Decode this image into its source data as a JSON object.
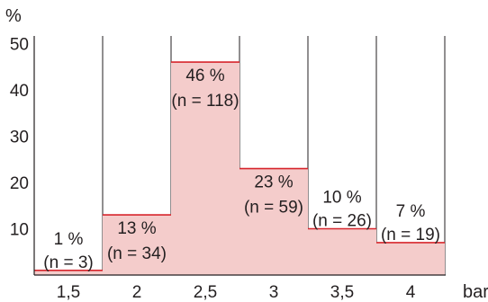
{
  "chart_data": {
    "type": "bar",
    "ylabel": "%",
    "xlabel": "bar",
    "yticks": [
      10,
      20,
      30,
      40,
      50
    ],
    "ylim": [
      0,
      53
    ],
    "categories": [
      "1,5",
      "2",
      "2,5",
      "3",
      "3,5",
      "4"
    ],
    "values": [
      1,
      13,
      46,
      23,
      10,
      7
    ],
    "value_labels": [
      "1 %",
      "13 %",
      "46 %",
      "23 %",
      "10 %",
      "7 %"
    ],
    "count_labels": [
      "(n = 3)",
      "(n = 34)",
      "(n = 118)",
      "(n = 59)",
      "(n = 26)",
      "(n = 19)"
    ],
    "grid": "vertical",
    "colors": {
      "bar_fill": "#f4cccb",
      "bar_stroke": "#d7262d",
      "axis": "#231f20"
    }
  }
}
